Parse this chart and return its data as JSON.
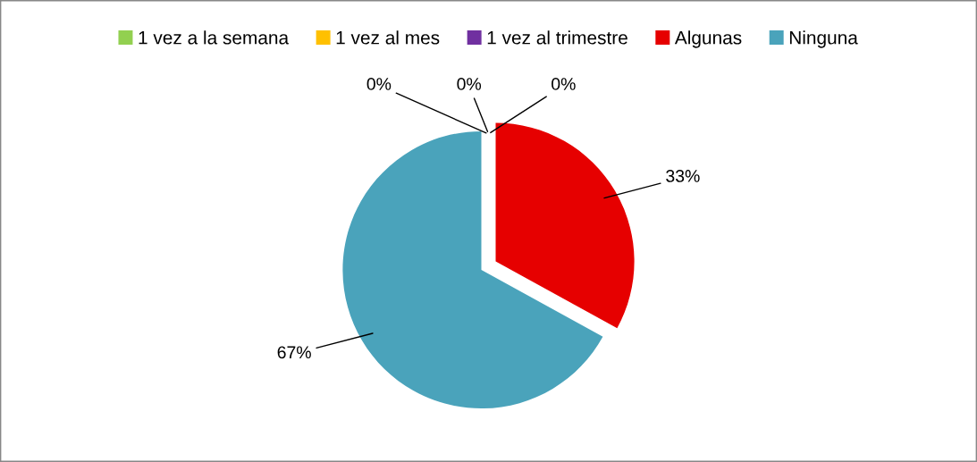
{
  "chart_data": {
    "type": "pie",
    "categories": [
      "1 vez a la semana",
      "1 vez al mes",
      "1 vez al trimestre",
      "Algunas",
      "Ninguna"
    ],
    "values": [
      0,
      0,
      0,
      33,
      67
    ],
    "colors": [
      "#92d050",
      "#ffc000",
      "#7030a0",
      "#e60000",
      "#4aa3bb"
    ],
    "value_labels": [
      "0%",
      "0%",
      "0%",
      "33%",
      "67%"
    ],
    "legend": "top"
  }
}
